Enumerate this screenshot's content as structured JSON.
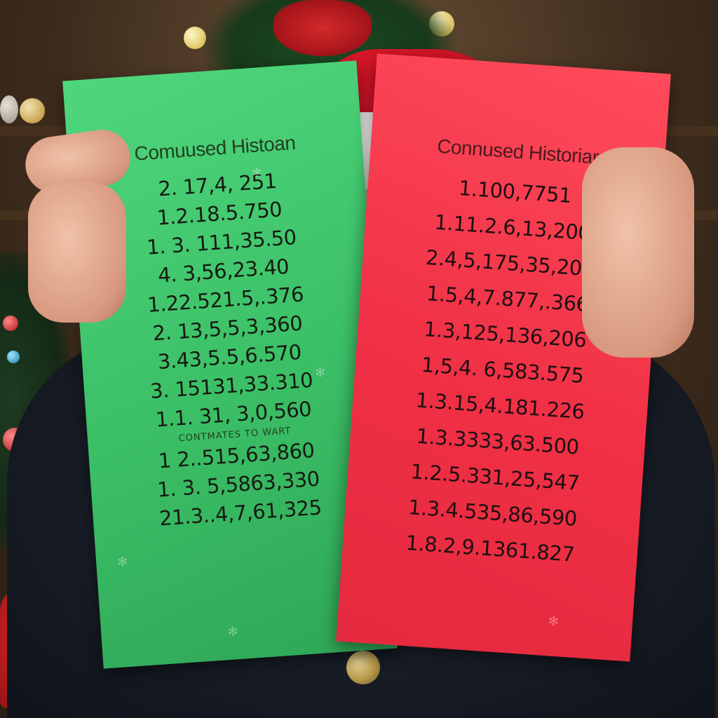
{
  "green_sign": {
    "title": "Comuused Histoan",
    "numbers": [
      "2. 17,4, 251",
      "1.2.18.5.750",
      "1. 3. 111,35.50",
      "4.  3,56,23.40",
      "1.22.521.5,.376",
      "2. 13,5,5,3,360",
      "3.43,5.5,6.570",
      "3. 15131,33.310",
      "1.1. 31, 3,0,560"
    ],
    "subtitle": "CONTMATES TO WART",
    "numbers_after": [
      "1 2..515,63,860",
      "1. 3. 5,5863,330",
      "21.3..4,7,61,325"
    ],
    "color": "#3bbf66"
  },
  "red_sign": {
    "title": "Connused Historiar",
    "numbers": [
      "1.100,7751",
      "1.11.2.6,13,200",
      "2.4,5,175,35,200",
      "1.5,4,7.877,.366",
      "1.3,125,136,206",
      "1,5,4. 6,583.575",
      "1.3.15,4.181.226",
      "1.3.3333,63.500",
      "1.2.5.331,25,547",
      "1.3.4.535,86,590",
      "1.8.2,9.1361.827"
    ],
    "color": "#f03045"
  }
}
